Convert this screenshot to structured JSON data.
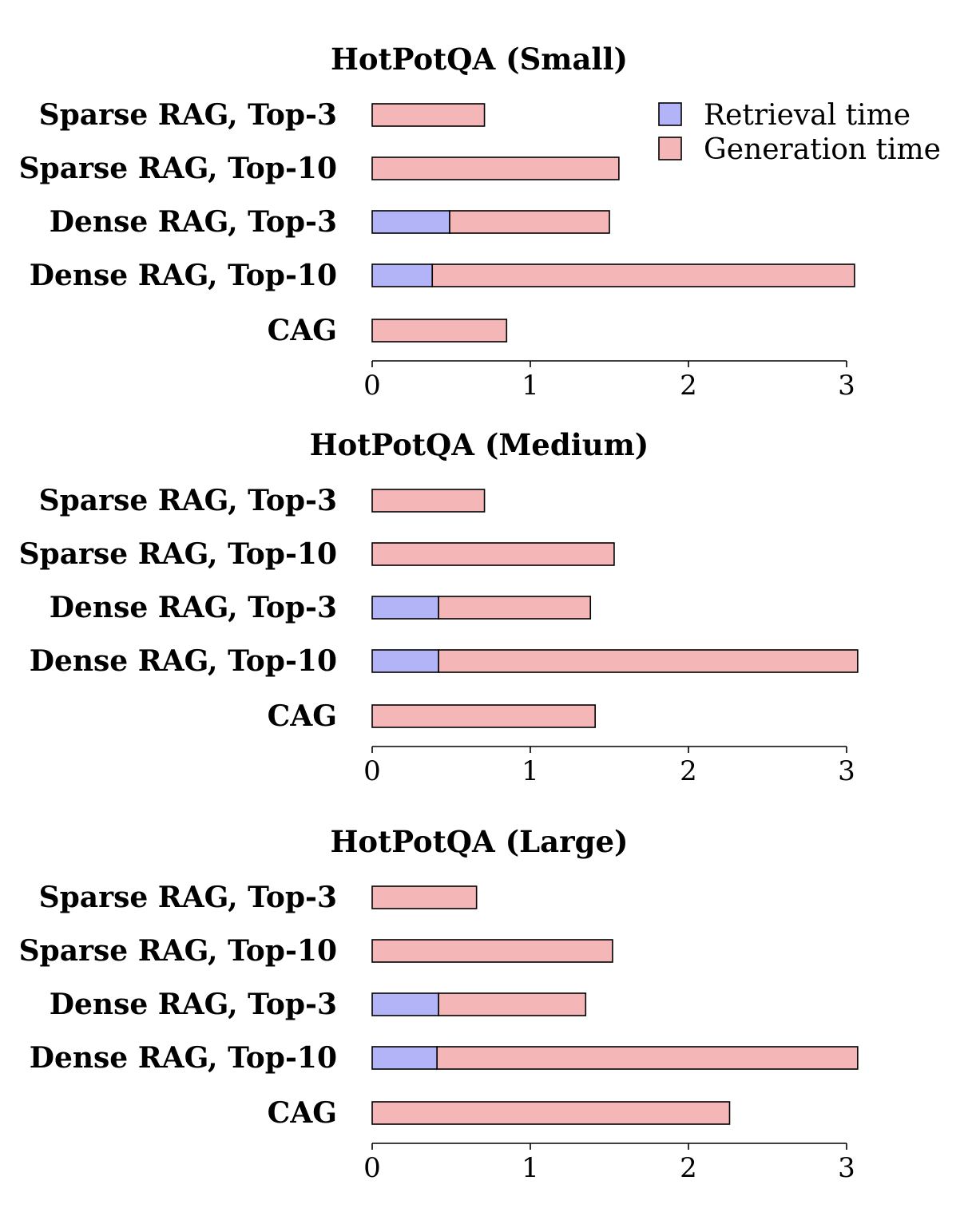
{
  "chart_data": [
    {
      "type": "bar",
      "orientation": "horizontal",
      "stacked": true,
      "title": "HotPotQA (Small)",
      "categories": [
        "Sparse RAG, Top-3",
        "Sparse RAG, Top-10",
        "Dense RAG, Top-3",
        "Dense RAG, Top-10",
        "CAG"
      ],
      "series": [
        {
          "name": "Retrieval time",
          "color": "#b3b3f7",
          "values": [
            0.0,
            0.0,
            0.49,
            0.38,
            0.0
          ]
        },
        {
          "name": "Generation time",
          "color": "#f4b6b6",
          "values": [
            0.71,
            1.56,
            1.01,
            2.67,
            0.85
          ]
        }
      ],
      "xticks": [
        "0",
        "1",
        "2",
        "3"
      ],
      "xlim": [
        0,
        3
      ],
      "legend": "top-right"
    },
    {
      "type": "bar",
      "orientation": "horizontal",
      "stacked": true,
      "title": "HotPotQA (Medium)",
      "categories": [
        "Sparse RAG, Top-3",
        "Sparse RAG, Top-10",
        "Dense RAG, Top-3",
        "Dense RAG, Top-10",
        "CAG"
      ],
      "series": [
        {
          "name": "Retrieval time",
          "color": "#b3b3f7",
          "values": [
            0.0,
            0.0,
            0.42,
            0.42,
            0.0
          ]
        },
        {
          "name": "Generation time",
          "color": "#f4b6b6",
          "values": [
            0.71,
            1.53,
            0.96,
            2.65,
            1.41
          ]
        }
      ],
      "xticks": [
        "0",
        "1",
        "2",
        "3"
      ],
      "xlim": [
        0,
        3
      ]
    },
    {
      "type": "bar",
      "orientation": "horizontal",
      "stacked": true,
      "title": "HotPotQA (Large)",
      "categories": [
        "Sparse RAG, Top-3",
        "Sparse RAG, Top-10",
        "Dense RAG, Top-3",
        "Dense RAG, Top-10",
        "CAG"
      ],
      "series": [
        {
          "name": "Retrieval time",
          "color": "#b3b3f7",
          "values": [
            0.0,
            0.0,
            0.42,
            0.41,
            0.0
          ]
        },
        {
          "name": "Generation time",
          "color": "#f4b6b6",
          "values": [
            0.66,
            1.52,
            0.93,
            2.66,
            2.26
          ]
        }
      ],
      "xticks": [
        "0",
        "1",
        "2",
        "3"
      ],
      "xlim": [
        0,
        3
      ]
    }
  ],
  "legend": {
    "entries": [
      {
        "label": "Retrieval time",
        "color": "#b3b3f7"
      },
      {
        "label": "Generation time",
        "color": "#f4b6b6"
      }
    ]
  }
}
